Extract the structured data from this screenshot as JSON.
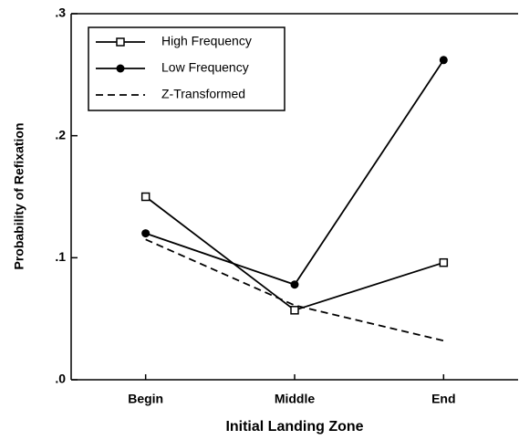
{
  "chart_data": {
    "type": "line",
    "xlabel": "Initial Landing Zone",
    "ylabel": "Probability of Refixation",
    "categories": [
      "Begin",
      "Middle",
      "End"
    ],
    "series": [
      {
        "name": "High Frequency",
        "color": "#000000",
        "marker": "square",
        "dashed": false,
        "values": [
          0.15,
          0.057,
          0.096
        ]
      },
      {
        "name": "Low Frequency",
        "color": "#000000",
        "marker": "circle",
        "dashed": false,
        "values": [
          0.12,
          0.078,
          0.262
        ]
      },
      {
        "name": "Z-Transformed",
        "color": "#000000",
        "marker": "none",
        "dashed": true,
        "values": [
          0.115,
          0.061,
          0.032
        ]
      }
    ],
    "ylim": [
      0,
      0.3
    ],
    "yticks": [
      {
        "value": 0,
        "label": ".0"
      },
      {
        "value": 0.1,
        "label": ".1"
      },
      {
        "value": 0.2,
        "label": ".2"
      },
      {
        "value": 0.3,
        "label": ".3"
      }
    ],
    "legend": "upper left",
    "grid": false
  }
}
